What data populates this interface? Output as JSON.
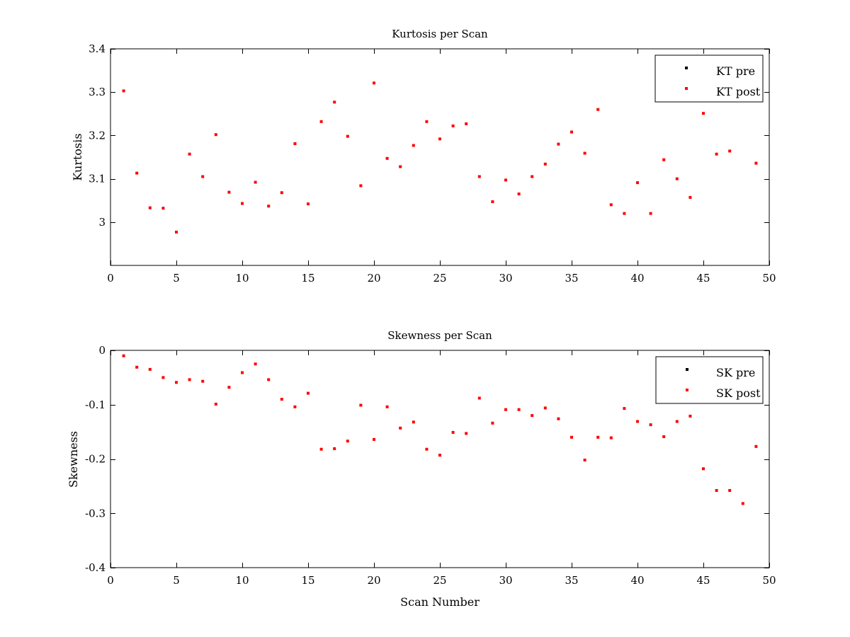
{
  "chart_data": [
    {
      "type": "scatter",
      "title": "Kurtosis per Scan",
      "xlabel": "",
      "ylabel": "Kurtosis",
      "xlim": [
        0,
        50
      ],
      "ylim": [
        2.9,
        3.4
      ],
      "xticks": [
        "0",
        "5",
        "10",
        "15",
        "20",
        "25",
        "30",
        "35",
        "40",
        "45",
        "50"
      ],
      "xtick_values": [
        0,
        5,
        10,
        15,
        20,
        25,
        30,
        35,
        40,
        45,
        50
      ],
      "yticks": [
        "3",
        "3.1",
        "3.2",
        "3.3",
        "3.4"
      ],
      "ytick_values": [
        3.0,
        3.1,
        3.2,
        3.3,
        3.4
      ],
      "grid": false,
      "legend_position": "top-right",
      "series": [
        {
          "name": "KT pre",
          "color": "#000000",
          "x": [],
          "y": []
        },
        {
          "name": "KT post",
          "color": "#ff0000",
          "x": [
            1,
            2,
            3,
            4,
            5,
            6,
            7,
            8,
            9,
            10,
            11,
            12,
            13,
            14,
            15,
            16,
            17,
            18,
            19,
            20,
            21,
            22,
            23,
            24,
            25,
            26,
            27,
            28,
            29,
            30,
            31,
            32,
            33,
            34,
            35,
            36,
            37,
            38,
            39,
            40,
            41,
            42,
            43,
            44,
            45,
            46,
            47,
            49
          ],
          "y": [
            3.303,
            3.113,
            3.033,
            3.032,
            2.977,
            3.157,
            3.105,
            3.202,
            3.069,
            3.043,
            3.092,
            3.037,
            3.068,
            3.181,
            3.042,
            3.232,
            3.277,
            3.198,
            3.084,
            3.321,
            3.147,
            3.128,
            3.177,
            3.232,
            3.192,
            3.222,
            3.227,
            3.105,
            3.047,
            3.097,
            3.065,
            3.105,
            3.134,
            3.18,
            3.208,
            3.159,
            3.26,
            3.04,
            3.02,
            3.091,
            3.02,
            3.144,
            3.1,
            3.057,
            3.251,
            3.157,
            3.164,
            3.136
          ]
        }
      ]
    },
    {
      "type": "scatter",
      "title": "Skewness per Scan",
      "xlabel": "Scan Number",
      "ylabel": "Skewness",
      "xlim": [
        0,
        50
      ],
      "ylim": [
        -0.4,
        0
      ],
      "xticks": [
        "0",
        "5",
        "10",
        "15",
        "20",
        "25",
        "30",
        "35",
        "40",
        "45",
        "50"
      ],
      "xtick_values": [
        0,
        5,
        10,
        15,
        20,
        25,
        30,
        35,
        40,
        45,
        50
      ],
      "yticks": [
        "-0.4",
        "-0.3",
        "-0.2",
        "-0.1",
        "0"
      ],
      "ytick_values": [
        -0.4,
        -0.3,
        -0.2,
        -0.1,
        0
      ],
      "grid": false,
      "legend_position": "top-right",
      "series": [
        {
          "name": "SK pre",
          "color": "#000000",
          "x": [],
          "y": []
        },
        {
          "name": "SK post",
          "color": "#ff0000",
          "x": [
            1,
            2,
            3,
            4,
            5,
            6,
            7,
            8,
            9,
            10,
            11,
            12,
            13,
            14,
            15,
            16,
            17,
            18,
            19,
            20,
            21,
            22,
            23,
            24,
            25,
            26,
            27,
            28,
            29,
            30,
            31,
            32,
            33,
            34,
            35,
            36,
            37,
            38,
            39,
            40,
            41,
            42,
            43,
            44,
            45,
            46,
            47,
            48,
            49
          ],
          "y": [
            -0.01,
            -0.031,
            -0.035,
            -0.05,
            -0.059,
            -0.054,
            -0.057,
            -0.099,
            -0.068,
            -0.041,
            -0.025,
            -0.054,
            -0.09,
            -0.104,
            -0.079,
            -0.182,
            -0.181,
            -0.167,
            -0.101,
            -0.164,
            -0.104,
            -0.143,
            -0.132,
            -0.182,
            -0.193,
            -0.151,
            -0.153,
            -0.088,
            -0.134,
            -0.109,
            -0.109,
            -0.12,
            -0.106,
            -0.126,
            -0.16,
            -0.202,
            -0.16,
            -0.161,
            -0.107,
            -0.131,
            -0.137,
            -0.159,
            -0.131,
            -0.121,
            -0.218,
            -0.258,
            -0.258,
            -0.282,
            -0.177
          ]
        }
      ]
    }
  ]
}
